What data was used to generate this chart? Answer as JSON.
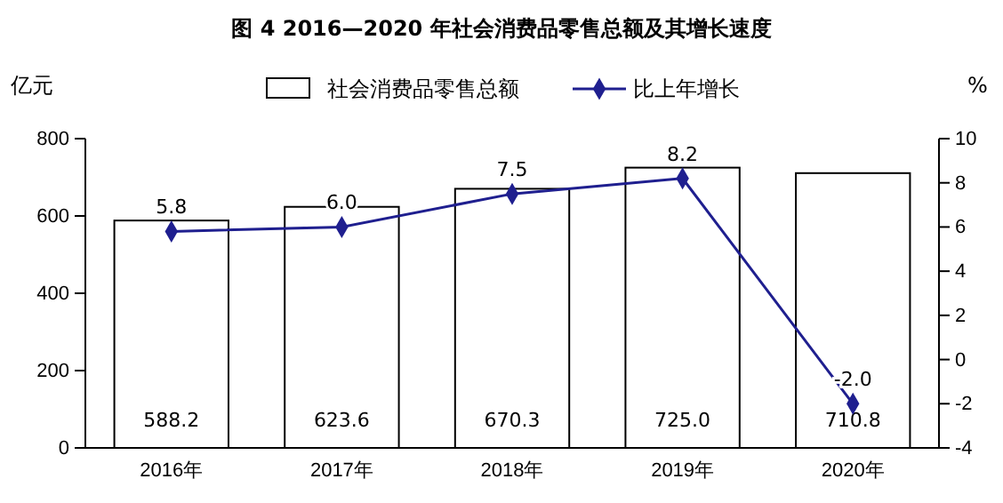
{
  "chart_data": {
    "type": "bar",
    "title": "图 4 2016—2020 年社会消费品零售总额及其增长速度",
    "ylabel": "亿元",
    "y2label": "%",
    "categories": [
      "2016年",
      "2017年",
      "2018年",
      "2019年",
      "2020年"
    ],
    "series": [
      {
        "name": "社会消费品零售总额",
        "color": "#ffffff",
        "values": [
          588.2,
          623.6,
          670.3,
          725.0,
          710.8
        ],
        "value_labels": [
          "588.2",
          "623.6",
          "670.3",
          "725.0",
          "710.8"
        ]
      },
      {
        "name": "比上年增长",
        "type": "line",
        "axis": "y2",
        "color": "#1f1f8f",
        "values": [
          5.8,
          6.0,
          7.5,
          8.2,
          -2.0
        ],
        "value_labels": [
          "5.8",
          "6.0",
          "7.5",
          "8.2",
          "-2.0"
        ]
      }
    ],
    "ylim": [
      0,
      800
    ],
    "yticks": [
      0,
      200,
      400,
      600,
      800
    ],
    "y2lim": [
      -4,
      10
    ],
    "y2ticks": [
      -4,
      -2,
      0,
      2,
      4,
      6,
      8,
      10
    ],
    "legend": "top",
    "marker": "diamond",
    "grid": false
  }
}
